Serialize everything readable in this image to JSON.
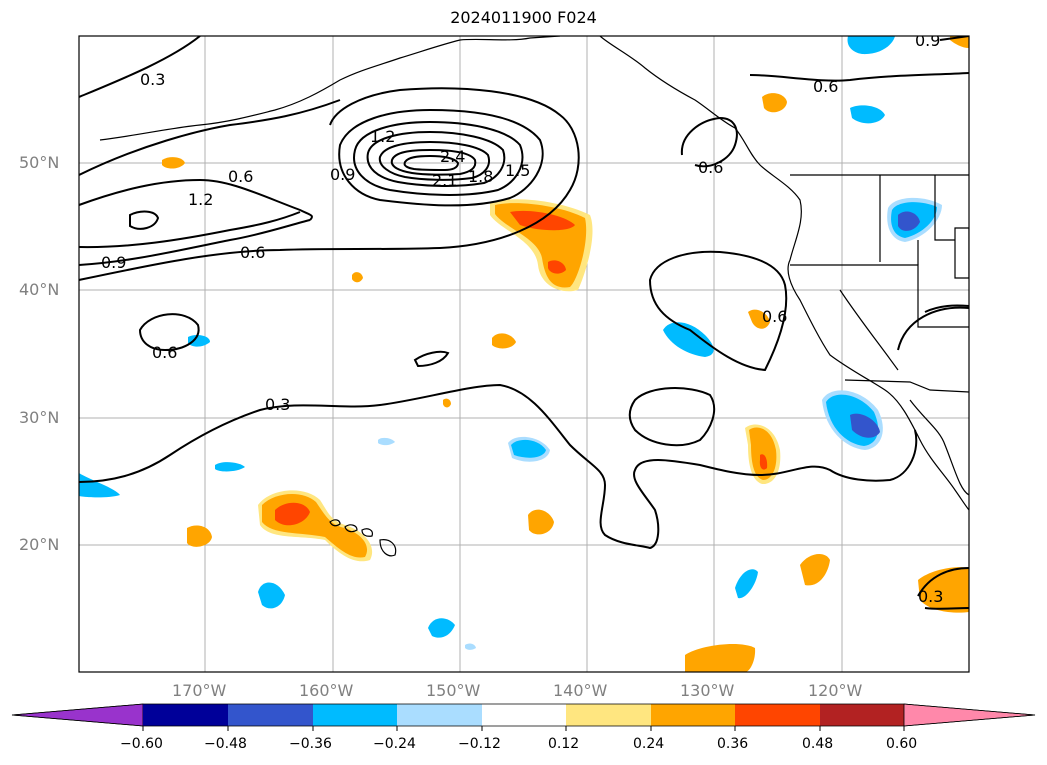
{
  "title": "2024011900 F024",
  "map": {
    "lon_range": [
      -180,
      -110
    ],
    "lat_range": [
      10,
      60
    ],
    "grid": true,
    "lat_ticks": [
      {
        "value": 20,
        "label": "20°N"
      },
      {
        "value": 30,
        "label": "30°N"
      },
      {
        "value": 40,
        "label": "40°N"
      },
      {
        "value": 50,
        "label": "50°N"
      }
    ],
    "lon_ticks": [
      {
        "value": -170,
        "label": "170°W"
      },
      {
        "value": -160,
        "label": "160°W"
      },
      {
        "value": -150,
        "label": "150°W"
      },
      {
        "value": -140,
        "label": "140°W"
      },
      {
        "value": -130,
        "label": "130°W"
      },
      {
        "value": -120,
        "label": "120°W"
      }
    ],
    "contour_labels": [
      "0.3",
      "0.6",
      "0.9",
      "1.2",
      "1.5",
      "1.8",
      "2.1",
      "2.4"
    ]
  },
  "colorbar": {
    "labels": [
      "−0.60",
      "−0.48",
      "−0.36",
      "−0.24",
      "−0.12",
      "0.12",
      "0.24",
      "0.36",
      "0.48",
      "0.60"
    ],
    "colors": [
      "#9933cc",
      "#000099",
      "#3355cc",
      "#00bbff",
      "#aaddff",
      "#ffffff",
      "#ffe680",
      "#ffa500",
      "#ff4500",
      "#b22222",
      "#ff88aa"
    ]
  }
}
